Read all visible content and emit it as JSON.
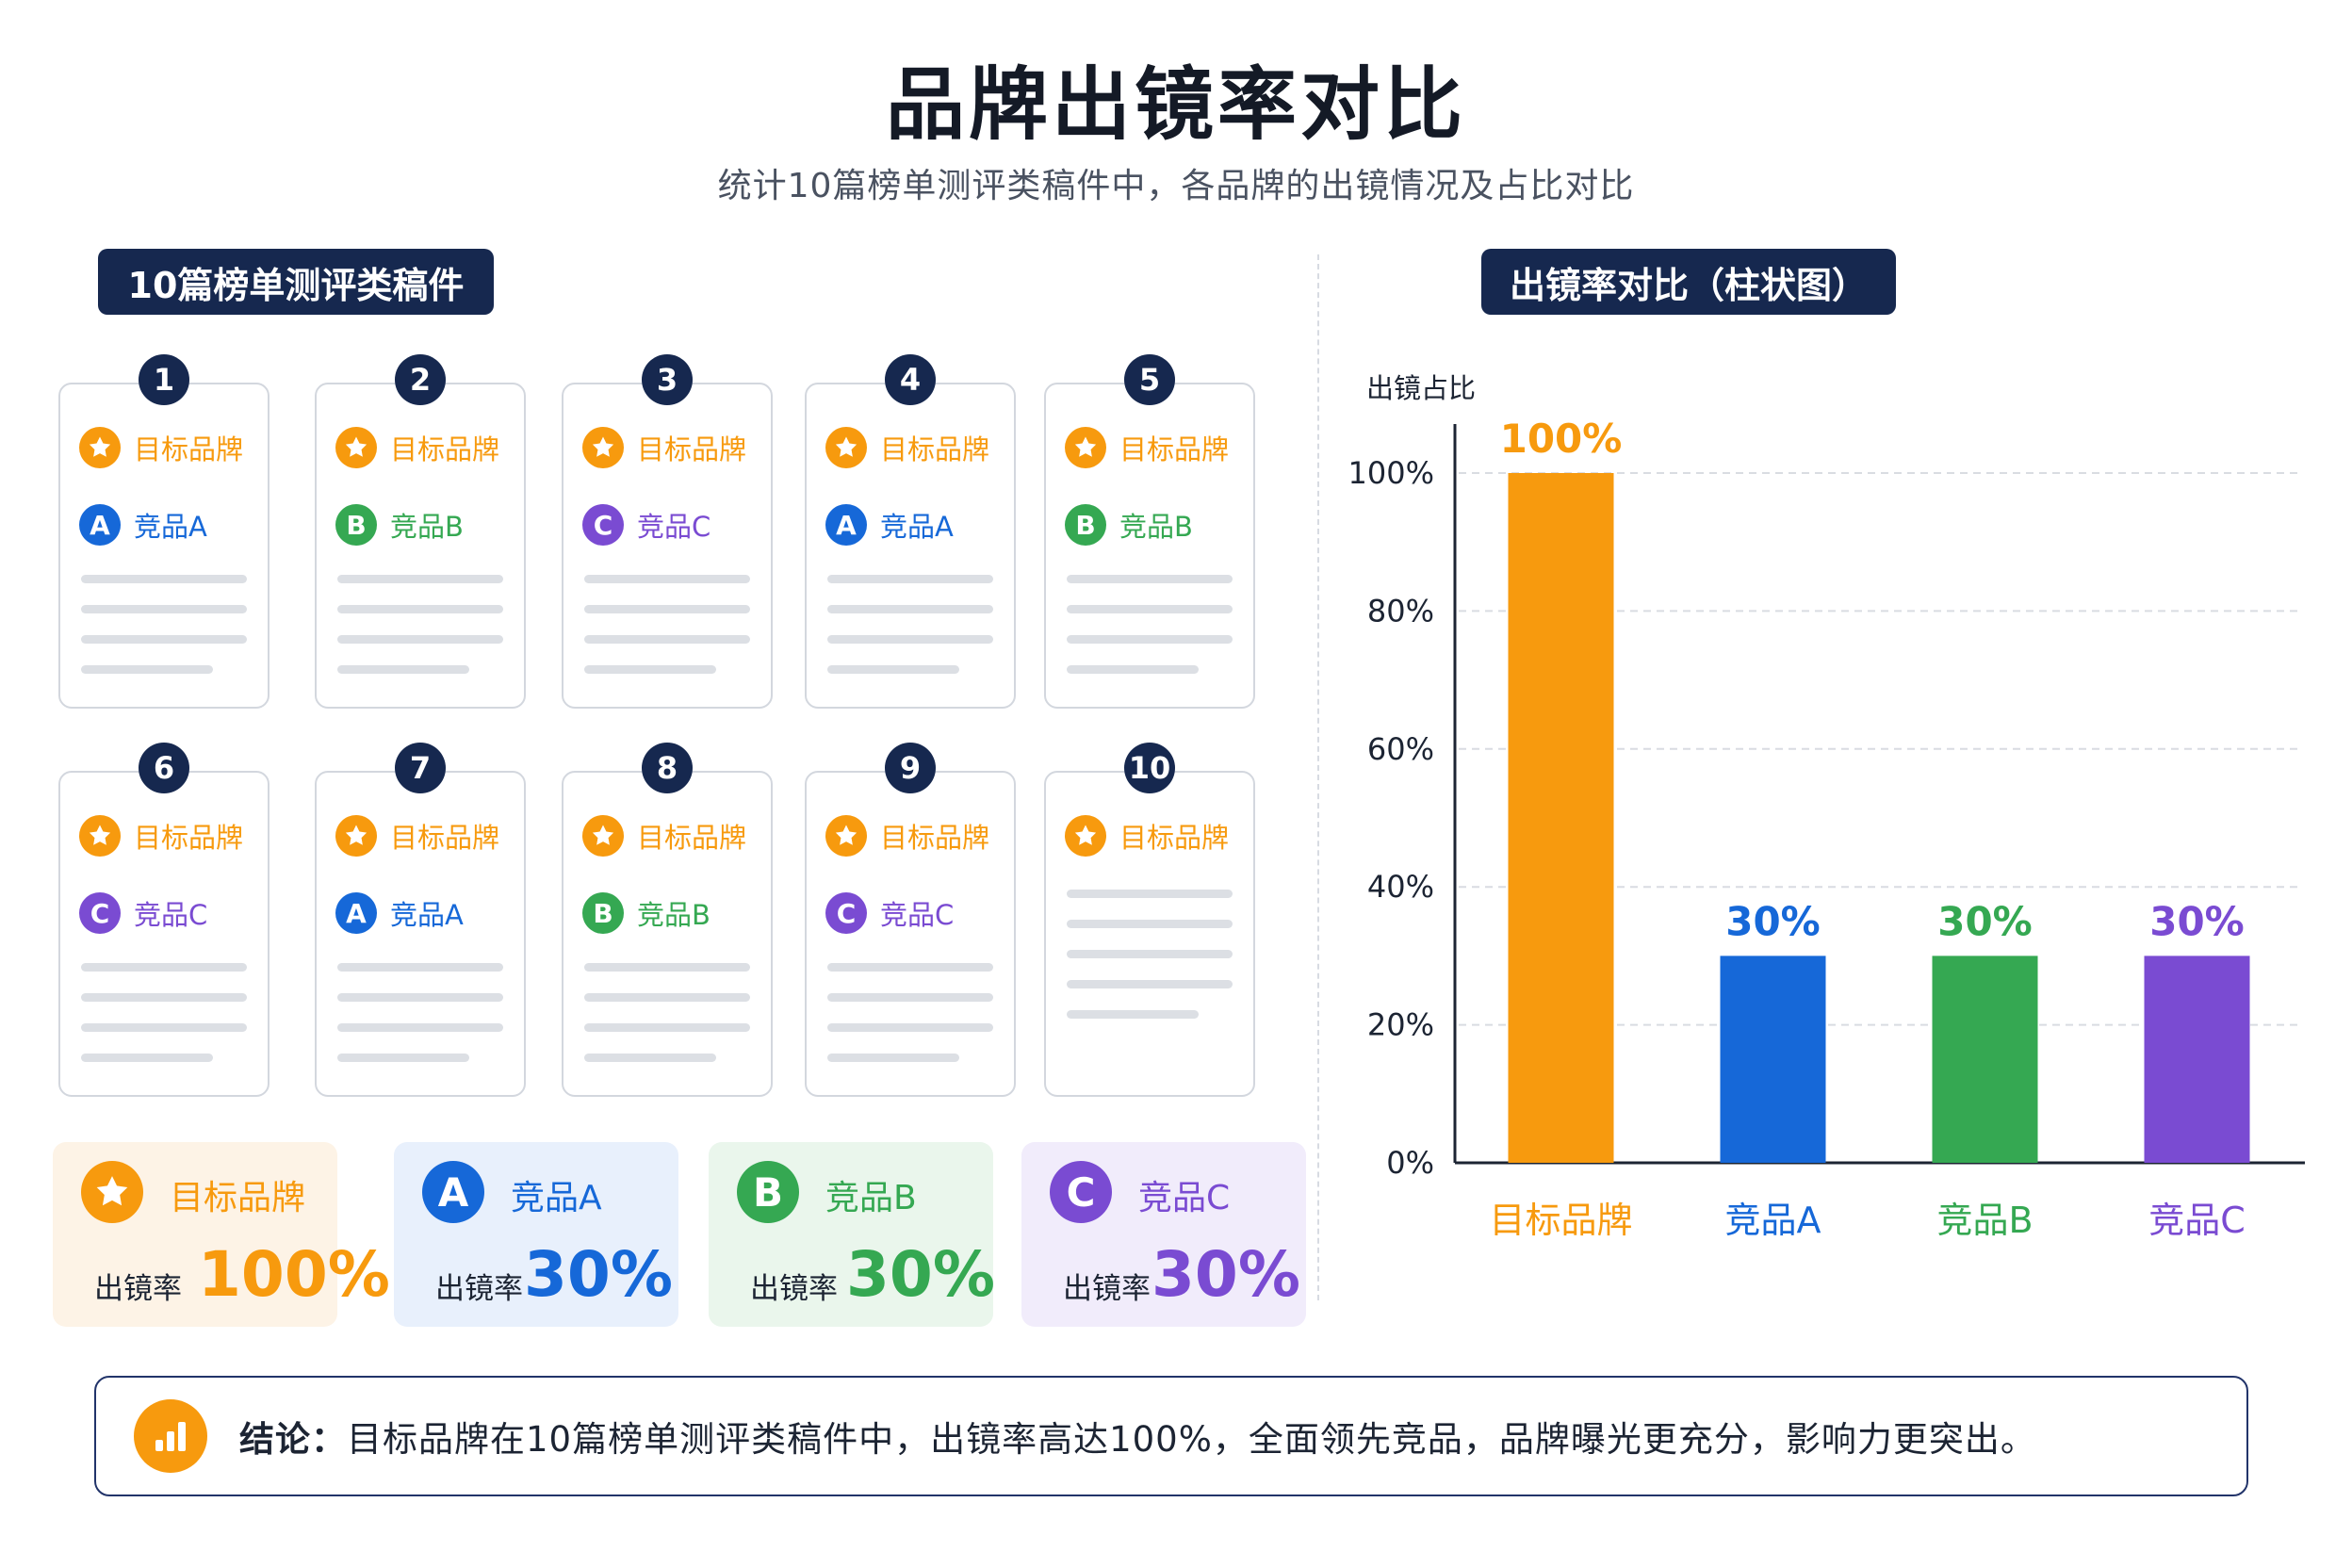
{
  "title": "品牌出镜率对比",
  "subtitle": "统计10篇榜单测评类稿件中，各品牌的出镜情况及占比对比",
  "left_section_title": "10篇榜单测评类稿件",
  "right_section_title": "出镜率对比（柱状图）",
  "colors": {
    "target": "#f79a0e",
    "competitor_a": "#1668d8",
    "competitor_b": "#35a852",
    "competitor_c": "#7a4bd2",
    "navy": "#16284f"
  },
  "brands": {
    "target": {
      "label": "目标品牌",
      "icon": "star-icon"
    },
    "A": {
      "label": "竞品A",
      "letter": "A"
    },
    "B": {
      "label": "竞品B",
      "letter": "B"
    },
    "C": {
      "label": "竞品C",
      "letter": "C"
    }
  },
  "articles": [
    {
      "num": "1",
      "brands": [
        "target",
        "A"
      ]
    },
    {
      "num": "2",
      "brands": [
        "target",
        "B"
      ]
    },
    {
      "num": "3",
      "brands": [
        "target",
        "C"
      ]
    },
    {
      "num": "4",
      "brands": [
        "target",
        "A"
      ]
    },
    {
      "num": "5",
      "brands": [
        "target",
        "B"
      ]
    },
    {
      "num": "6",
      "brands": [
        "target",
        "C"
      ]
    },
    {
      "num": "7",
      "brands": [
        "target",
        "A"
      ]
    },
    {
      "num": "8",
      "brands": [
        "target",
        "B"
      ]
    },
    {
      "num": "9",
      "brands": [
        "target",
        "C"
      ]
    },
    {
      "num": "10",
      "brands": [
        "target"
      ]
    }
  ],
  "summary": [
    {
      "key": "target",
      "name": "目标品牌",
      "rate_label": "出镜率",
      "rate": "100%"
    },
    {
      "key": "A",
      "name": "竞品A",
      "rate_label": "出镜率",
      "rate": "30%"
    },
    {
      "key": "B",
      "name": "竞品B",
      "rate_label": "出镜率",
      "rate": "30%"
    },
    {
      "key": "C",
      "name": "竞品C",
      "rate_label": "出镜率",
      "rate": "30%"
    }
  ],
  "chart_data": {
    "type": "bar",
    "ylabel": "出镜占比",
    "categories": [
      "目标品牌",
      "竞品A",
      "竞品B",
      "竞品C"
    ],
    "values": [
      100,
      30,
      30,
      30
    ],
    "data_labels": [
      "100%",
      "30%",
      "30%",
      "30%"
    ],
    "bar_colors": [
      "#f79a0e",
      "#1668d8",
      "#35a852",
      "#7a4bd2"
    ],
    "ylim": [
      0,
      100
    ],
    "yticks": [
      0,
      20,
      40,
      60,
      80,
      100
    ],
    "ytick_labels": [
      "0%",
      "20%",
      "40%",
      "60%",
      "80%",
      "100%"
    ],
    "grid": true,
    "legend": "none"
  },
  "conclusion": {
    "icon": "bar-chart-icon",
    "prefix": "结论：",
    "text": "目标品牌在10篇榜单测评类稿件中，出镜率高达100%，全面领先竞品，品牌曝光更充分，影响力更突出。"
  }
}
